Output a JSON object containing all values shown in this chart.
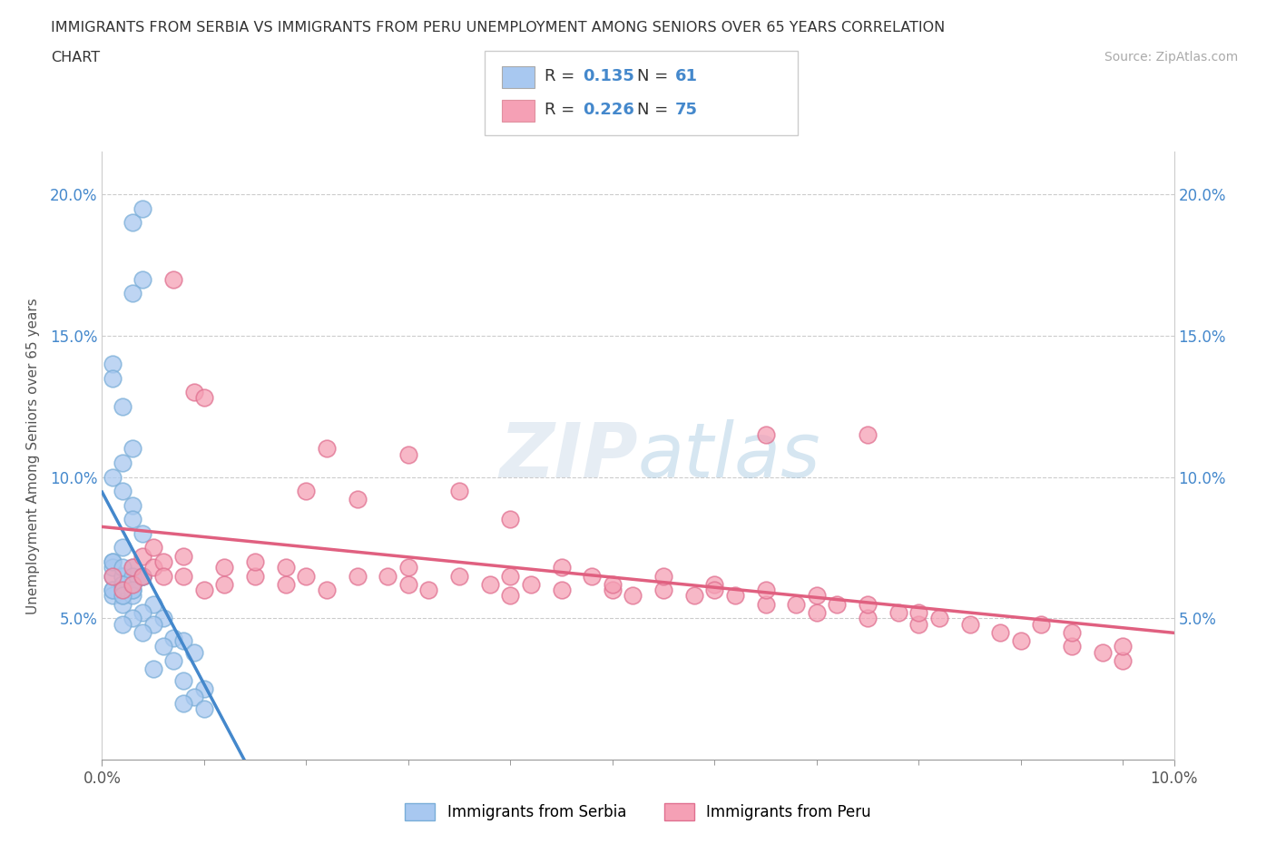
{
  "title_line1": "IMMIGRANTS FROM SERBIA VS IMMIGRANTS FROM PERU UNEMPLOYMENT AMONG SENIORS OVER 65 YEARS CORRELATION",
  "title_line2": "CHART",
  "source_text": "Source: ZipAtlas.com",
  "ylabel": "Unemployment Among Seniors over 65 years",
  "xlim": [
    0.0,
    0.105
  ],
  "ylim": [
    0.0,
    0.215
  ],
  "yticks": [
    0.05,
    0.1,
    0.15,
    0.2
  ],
  "ytick_labels": [
    "5.0%",
    "10.0%",
    "15.0%",
    "20.0%"
  ],
  "xtick_labels_ends": [
    "0.0%",
    "10.0%"
  ],
  "serbia_color": "#a8c8f0",
  "serbia_edge_color": "#7aaed8",
  "peru_color": "#f5a0b5",
  "peru_edge_color": "#e07090",
  "serbia_line_color": "#4488cc",
  "peru_line_color": "#e06080",
  "serbia_R": 0.135,
  "serbia_N": 61,
  "peru_R": 0.226,
  "peru_N": 75,
  "watermark": "ZIPatlas",
  "serbia_scatter_x": [
    0.002,
    0.003,
    0.004,
    0.004,
    0.003,
    0.001,
    0.001,
    0.002,
    0.003,
    0.002,
    0.001,
    0.002,
    0.003,
    0.003,
    0.004,
    0.002,
    0.001,
    0.003,
    0.004,
    0.002,
    0.001,
    0.002,
    0.001,
    0.002,
    0.003,
    0.002,
    0.001,
    0.002,
    0.003,
    0.001,
    0.002,
    0.003,
    0.002,
    0.001,
    0.003,
    0.004,
    0.002,
    0.001,
    0.003,
    0.002,
    0.004,
    0.003,
    0.002,
    0.005,
    0.004,
    0.003,
    0.002,
    0.006,
    0.005,
    0.004,
    0.007,
    0.008,
    0.006,
    0.009,
    0.007,
    0.005,
    0.008,
    0.01,
    0.009,
    0.008,
    0.01
  ],
  "serbia_scatter_y": [
    0.065,
    0.19,
    0.195,
    0.17,
    0.165,
    0.14,
    0.135,
    0.125,
    0.11,
    0.105,
    0.1,
    0.095,
    0.09,
    0.085,
    0.08,
    0.075,
    0.07,
    0.068,
    0.065,
    0.062,
    0.06,
    0.058,
    0.065,
    0.062,
    0.06,
    0.058,
    0.068,
    0.065,
    0.062,
    0.07,
    0.068,
    0.065,
    0.06,
    0.058,
    0.062,
    0.065,
    0.055,
    0.06,
    0.058,
    0.062,
    0.065,
    0.06,
    0.058,
    0.055,
    0.052,
    0.05,
    0.048,
    0.05,
    0.048,
    0.045,
    0.043,
    0.042,
    0.04,
    0.038,
    0.035,
    0.032,
    0.028,
    0.025,
    0.022,
    0.02,
    0.018
  ],
  "peru_scatter_x": [
    0.001,
    0.002,
    0.003,
    0.003,
    0.004,
    0.004,
    0.005,
    0.005,
    0.006,
    0.006,
    0.007,
    0.008,
    0.008,
    0.009,
    0.01,
    0.01,
    0.012,
    0.012,
    0.015,
    0.015,
    0.018,
    0.018,
    0.02,
    0.02,
    0.022,
    0.025,
    0.025,
    0.028,
    0.03,
    0.03,
    0.032,
    0.035,
    0.035,
    0.038,
    0.04,
    0.04,
    0.042,
    0.045,
    0.045,
    0.048,
    0.05,
    0.05,
    0.052,
    0.055,
    0.055,
    0.058,
    0.06,
    0.06,
    0.062,
    0.065,
    0.065,
    0.068,
    0.07,
    0.07,
    0.072,
    0.075,
    0.075,
    0.078,
    0.08,
    0.08,
    0.082,
    0.085,
    0.088,
    0.09,
    0.092,
    0.095,
    0.095,
    0.098,
    0.1,
    0.1,
    0.022,
    0.03,
    0.04,
    0.065,
    0.075
  ],
  "peru_scatter_y": [
    0.065,
    0.06,
    0.068,
    0.062,
    0.072,
    0.065,
    0.075,
    0.068,
    0.07,
    0.065,
    0.17,
    0.065,
    0.072,
    0.13,
    0.128,
    0.06,
    0.068,
    0.062,
    0.065,
    0.07,
    0.062,
    0.068,
    0.065,
    0.095,
    0.06,
    0.065,
    0.092,
    0.065,
    0.068,
    0.062,
    0.06,
    0.065,
    0.095,
    0.062,
    0.065,
    0.058,
    0.062,
    0.06,
    0.068,
    0.065,
    0.06,
    0.062,
    0.058,
    0.06,
    0.065,
    0.058,
    0.062,
    0.06,
    0.058,
    0.055,
    0.06,
    0.055,
    0.058,
    0.052,
    0.055,
    0.05,
    0.055,
    0.052,
    0.048,
    0.052,
    0.05,
    0.048,
    0.045,
    0.042,
    0.048,
    0.04,
    0.045,
    0.038,
    0.035,
    0.04,
    0.11,
    0.108,
    0.085,
    0.115,
    0.115
  ]
}
